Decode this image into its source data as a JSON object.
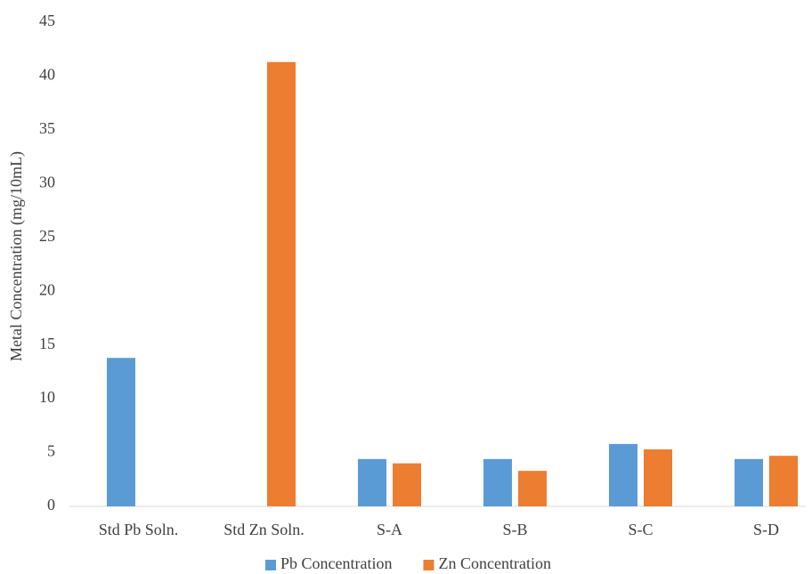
{
  "chart_data": {
    "type": "bar",
    "y_label": "Metal Concentration (mg/10mL)",
    "categories": [
      "Std Pb Soln.",
      "Std Zn Soln.",
      "S-A",
      "S-B",
      "S-C",
      "S-D"
    ],
    "series": [
      {
        "name": "Pb Concentration",
        "color": "#5b9bd5",
        "values": [
          13.8,
          null,
          4.4,
          4.4,
          5.8,
          4.4
        ]
      },
      {
        "name": "Zn Concentration",
        "color": "#ed7d31",
        "values": [
          null,
          41.3,
          4.0,
          3.3,
          5.3,
          4.7
        ]
      }
    ],
    "ylim": [
      0,
      45
    ],
    "yticks": [
      0,
      5,
      10,
      15,
      20,
      25,
      30,
      35,
      40,
      45
    ],
    "legend": "bottom"
  }
}
